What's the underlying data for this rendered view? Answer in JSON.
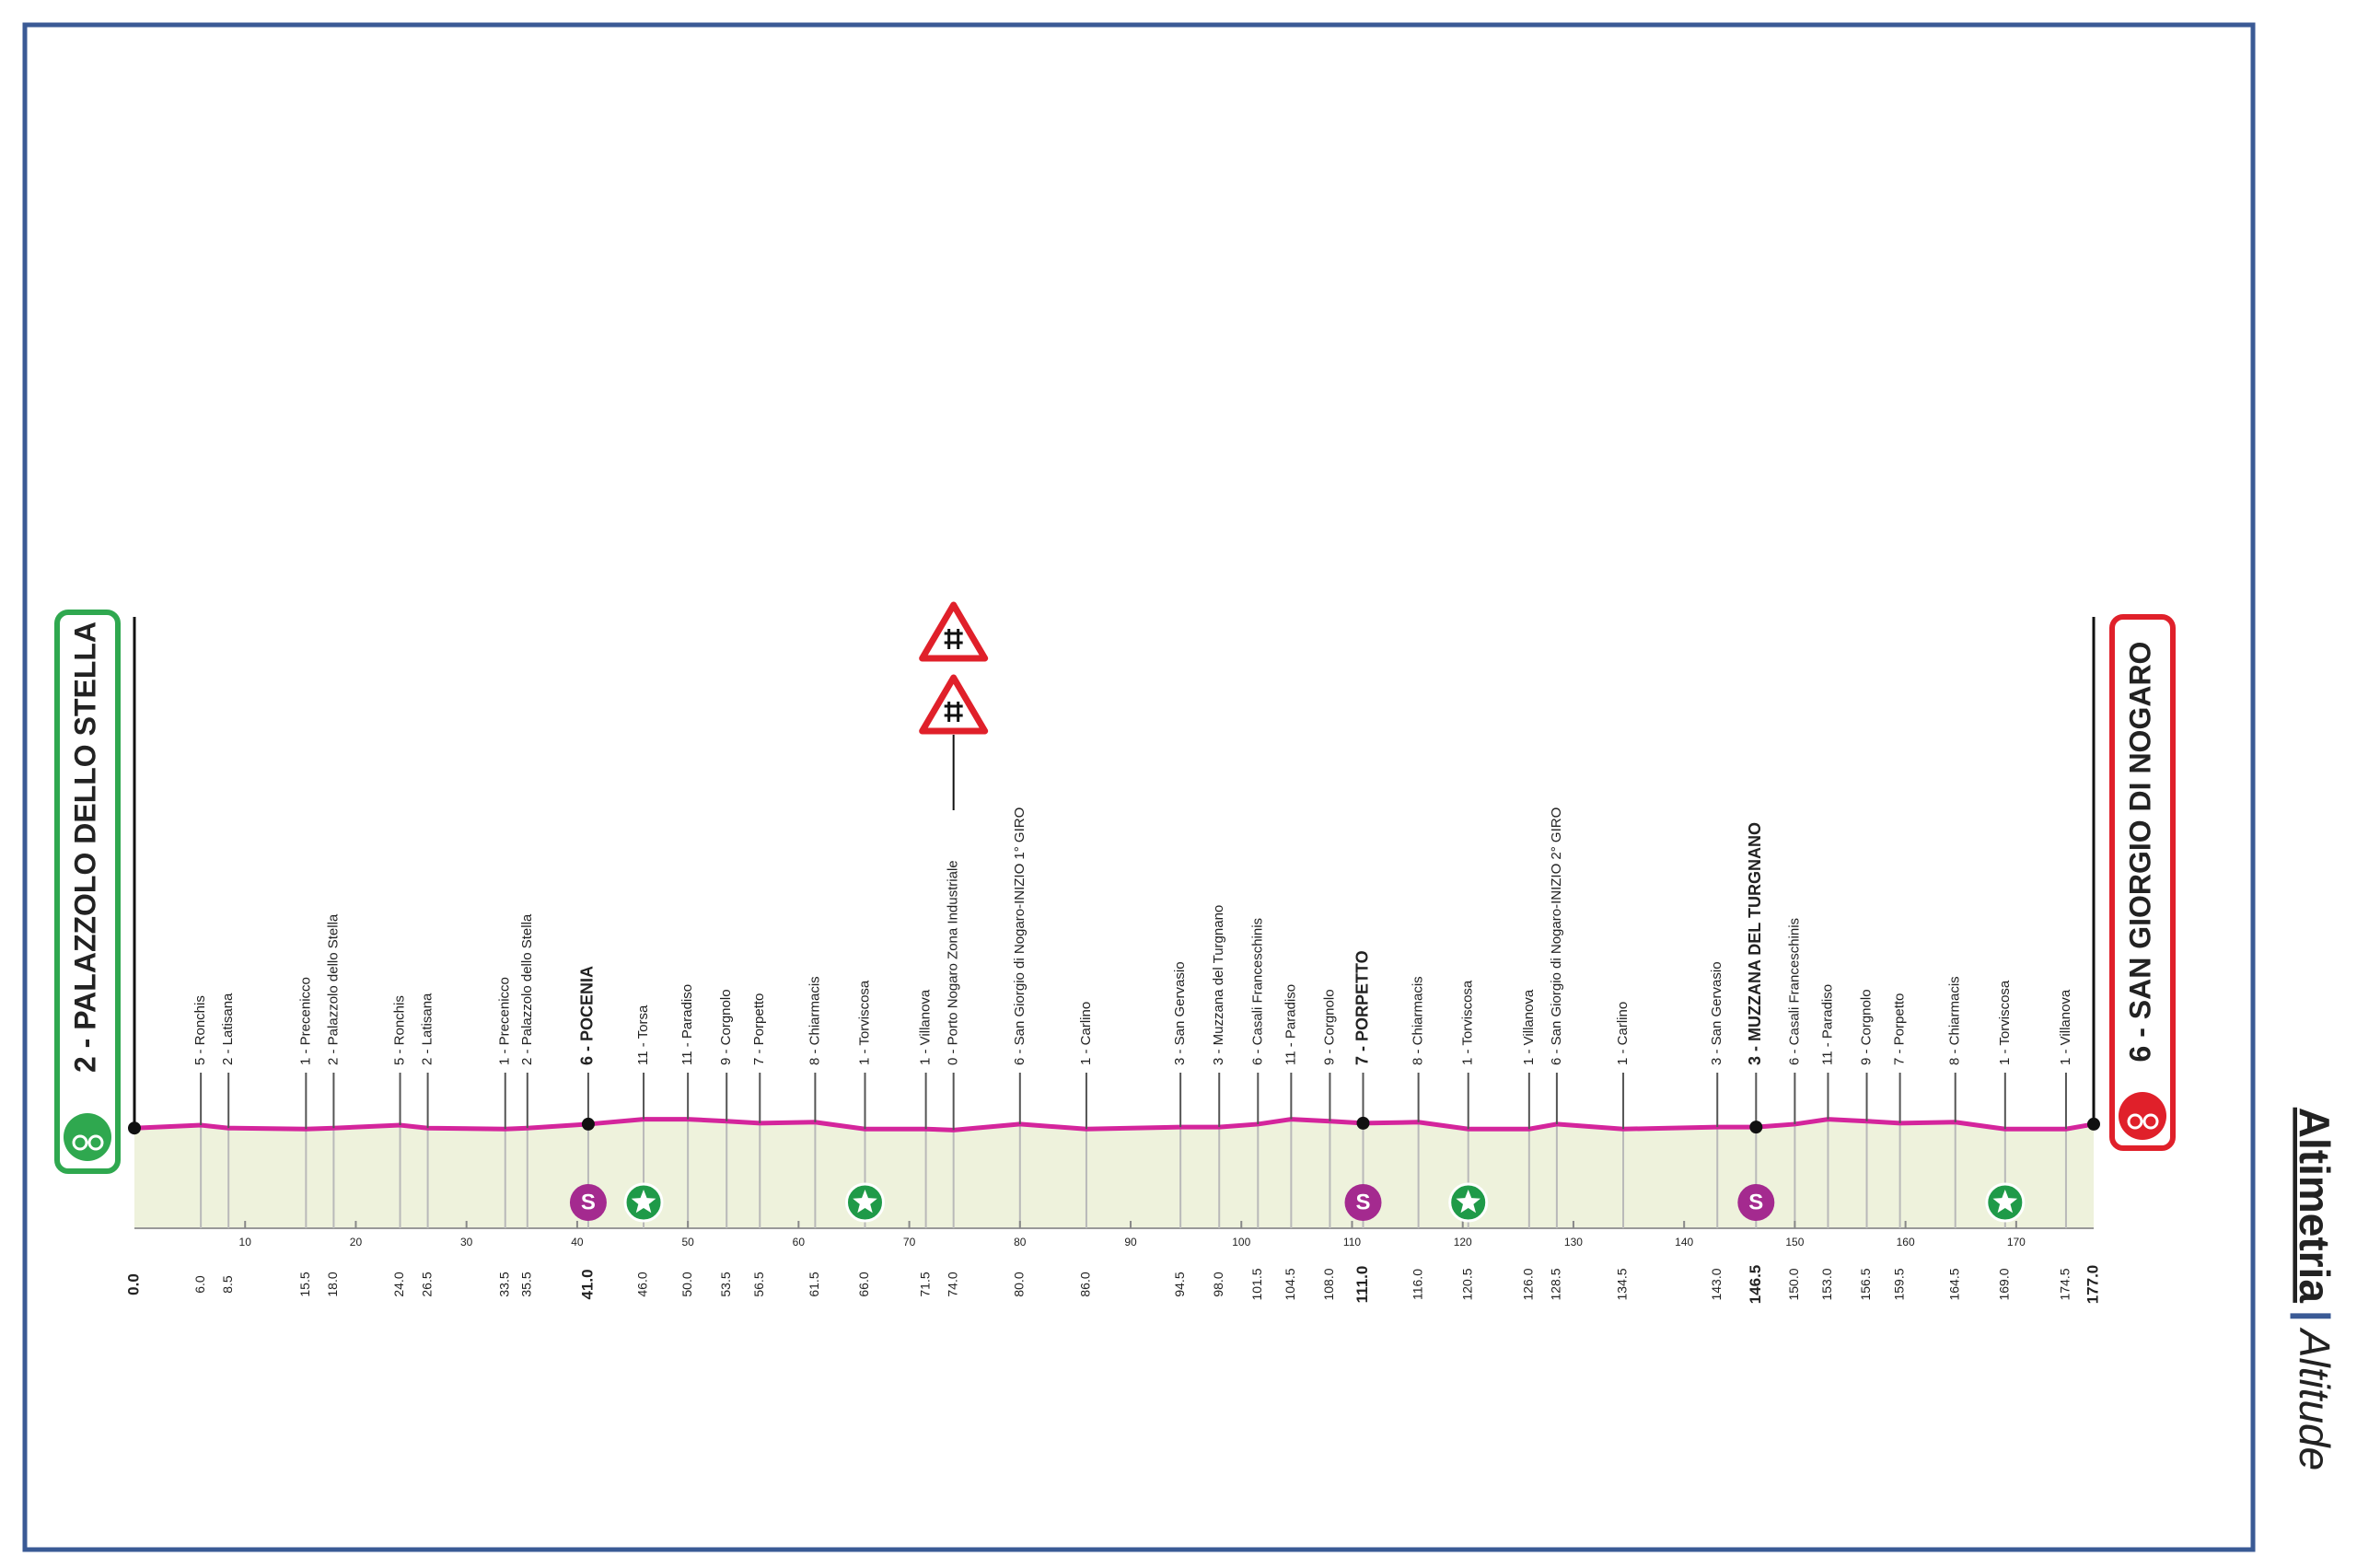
{
  "chart_data": {
    "type": "area",
    "x": [
      0.0,
      6.0,
      8.5,
      15.5,
      18.0,
      24.0,
      26.5,
      33.5,
      35.5,
      41.0,
      46.0,
      50.0,
      53.5,
      56.5,
      61.5,
      66.0,
      71.5,
      74.0,
      80.0,
      86.0,
      94.5,
      98.0,
      101.5,
      104.5,
      108.0,
      111.0,
      116.0,
      120.5,
      126.0,
      128.5,
      134.5,
      143.0,
      146.5,
      150.0,
      153.0,
      156.5,
      159.5,
      164.5,
      169.0,
      174.5,
      177.0
    ],
    "x_labels": [
      "0.0",
      "6.0",
      "8.5",
      "15.5",
      "18.0",
      "24.0",
      "26.5",
      "33.5",
      "35.5",
      "41.0",
      "46.0",
      "50.0",
      "53.5",
      "56.5",
      "61.5",
      "66.0",
      "71.5",
      "74.0",
      "80.0",
      "86.0",
      "94.5",
      "98.0",
      "101.5",
      "104.5",
      "108.0",
      "111.0",
      "116.0",
      "120.5",
      "126.0",
      "128.5",
      "134.5",
      "143.0",
      "146.5",
      "150.0",
      "153.0",
      "156.5",
      "159.5",
      "164.5",
      "169.0",
      "174.5",
      "177.0"
    ],
    "values": [
      2,
      5,
      2,
      1,
      2,
      5,
      2,
      1,
      2,
      6,
      11,
      11,
      9,
      7,
      8,
      1,
      1,
      0,
      6,
      1,
      3,
      3,
      6,
      11,
      9,
      7,
      8,
      1,
      1,
      6,
      1,
      3,
      3,
      6,
      11,
      9,
      7,
      8,
      1,
      1,
      6
    ],
    "value_labels": [
      "2 - PALAZZOLO DELLO STELLA",
      "5 - Ronchis",
      "2 - Latisana",
      "1 - Precenicco",
      "2 - Palazzolo dello Stella",
      "5 - Ronchis",
      "2 - Latisana",
      "1 - Precenicco",
      "2 - Palazzolo dello Stella",
      "6 - POCENIA",
      "11 - Torsa",
      "11 - Paradiso",
      "9 - Corgnolo",
      "7 - Porpetto",
      "8 - Chiarmacis",
      "1 - Torviscosa",
      "1 - Villanova",
      "0 - Porto Nogaro Zona Industriale",
      "6 - San Giorgio di Nogaro-INIZIO 1° GIRO",
      "1 - Carlino",
      "3 - San Gervasio",
      "3 - Muzzana del Turgnano",
      "6 - Casali Franceschinis",
      "11 - Paradiso",
      "9 - Corgnolo",
      "7 - PORPETTO",
      "8 - Chiarmacis",
      "1 - Torviscosa",
      "1 - Villanova",
      "6 - San Giorgio di Nogaro-INIZIO 2° GIRO",
      "1 - Carlino",
      "3 - San Gervasio",
      "3 - MUZZANA DEL TURGNANO",
      "6 - Casali Franceschinis",
      "11 - Paradiso",
      "9 - Corgnolo",
      "7 - Porpetto",
      "8 - Chiarmacis",
      "1 - Torviscosa",
      "1 - Villanova",
      "6 - SAN GIORGIO DI NOGARO"
    ],
    "xlim": [
      0,
      177
    ],
    "xticks": [
      10,
      20,
      30,
      40,
      50,
      60,
      70,
      80,
      90,
      100,
      110,
      120,
      130,
      140,
      150,
      160,
      170
    ],
    "ylim": [
      -100,
      20
    ],
    "color": "#d4259c",
    "area_color": "#eef2dc",
    "markers": [
      {
        "type": "sprint",
        "x": 41.0,
        "label": "S"
      },
      {
        "type": "sprint",
        "x": 111.0,
        "label": "S"
      },
      {
        "type": "sprint",
        "x": 146.5,
        "label": "S"
      },
      {
        "type": "intermediate",
        "x": 46.0
      },
      {
        "type": "intermediate",
        "x": 66.0
      },
      {
        "type": "intermediate",
        "x": 120.5
      },
      {
        "type": "intermediate",
        "x": 169.0
      },
      {
        "type": "level-crossing",
        "x": 74.0
      },
      {
        "type": "level-crossing",
        "x": 74.0
      }
    ]
  },
  "brand": {
    "title": "Altimetria",
    "subtitle": "Altitude"
  }
}
